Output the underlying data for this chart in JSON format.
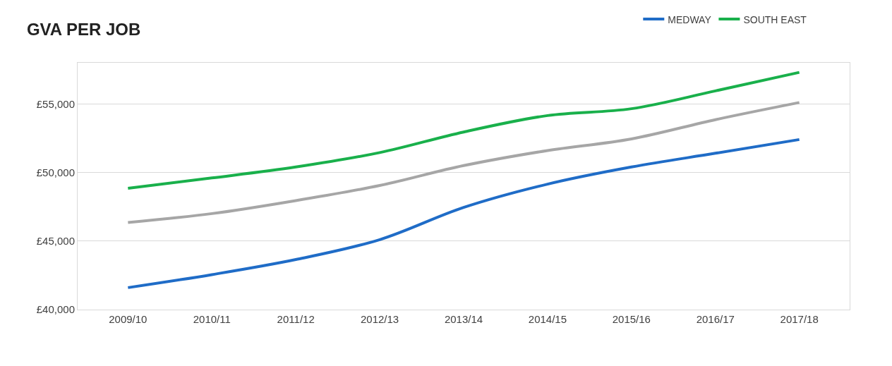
{
  "chart_data": {
    "type": "line",
    "title": "GVA PER JOB",
    "categories": [
      "2009/10",
      "2010/11",
      "2011/12",
      "2012/13",
      "2013/14",
      "2014/15",
      "2015/16",
      "2016/17",
      "2017/18"
    ],
    "series": [
      {
        "name": "MEDWAY",
        "color": "#1f6cc7",
        "values": [
          41600,
          42550,
          43650,
          45100,
          47450,
          49150,
          50400,
          51400,
          52400
        ]
      },
      {
        "name": "SOUTH EAST",
        "color": "#19b04b",
        "values": [
          48850,
          49600,
          50400,
          51450,
          52950,
          54150,
          54650,
          55950,
          57300
        ]
      },
      {
        "color": "#a6a6a6",
        "values": [
          46350,
          47000,
          47950,
          49050,
          50500,
          51600,
          52450,
          53850,
          55100
        ]
      }
    ],
    "ylim": [
      40000,
      58000
    ],
    "yticks": [
      {
        "value": 40000,
        "label": "£40,000"
      },
      {
        "value": 45000,
        "label": "£45,000"
      },
      {
        "value": 50000,
        "label": "£50,000"
      },
      {
        "value": 55000,
        "label": "£55,000"
      }
    ],
    "grid": "y",
    "legend": "top right",
    "marker": "none",
    "line_style": "solid"
  }
}
